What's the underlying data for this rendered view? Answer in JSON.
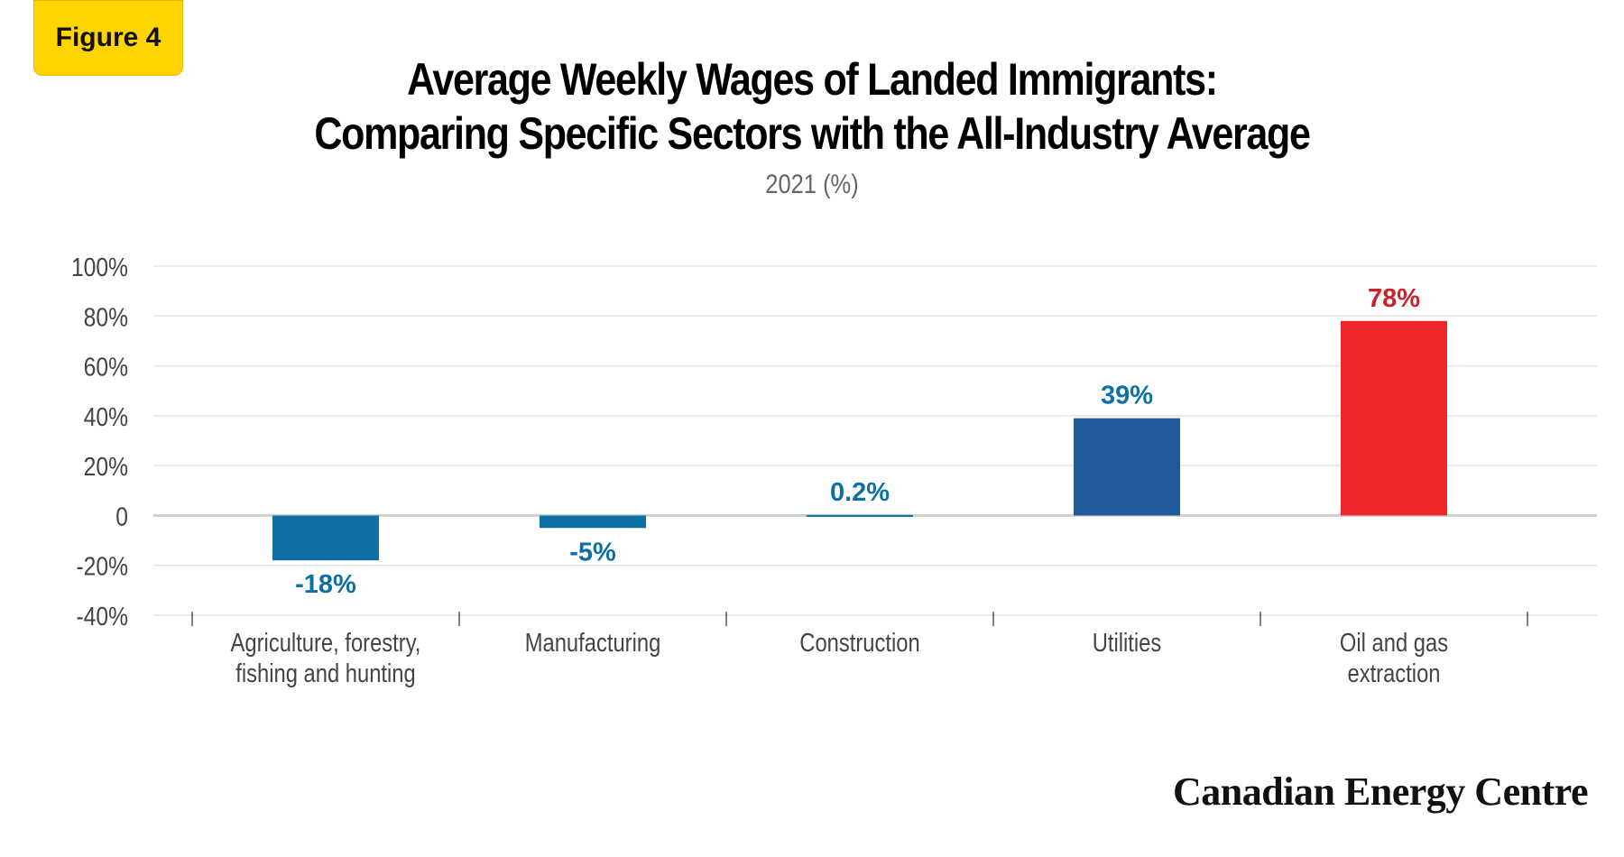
{
  "figure_label": "Figure 4",
  "title_line1": "Average Weekly Wages of Landed Immigrants:",
  "title_line2": "Comparing Specific Sectors with the All-Industry Average",
  "subtitle": "2021 (%)",
  "brand": "Canadian Energy Centre",
  "colors": {
    "teal_blue": "#0d6fa3",
    "dark_blue": "#1f5b9b",
    "red": "#ee2629",
    "label_blue": "#0d6fa3",
    "label_red": "#c8232a",
    "grid": "#e3e3e3",
    "axis_text": "#444444"
  },
  "chart_data": {
    "type": "bar",
    "title": "Average Weekly Wages of Landed Immigrants: Comparing Specific Sectors with the All-Industry Average",
    "subtitle": "2021 (%)",
    "categories": [
      [
        "Agriculture, forestry,",
        "fishing and hunting"
      ],
      [
        "Manufacturing"
      ],
      [
        "Construction"
      ],
      [
        "Utilities"
      ],
      [
        "Oil and gas",
        "extraction"
      ]
    ],
    "values": [
      -18,
      -5,
      0.2,
      39,
      78
    ],
    "data_labels": [
      "-18%",
      "-5%",
      "0.2%",
      "39%",
      "78%"
    ],
    "bar_colors": [
      "#0d6fa3",
      "#0d6fa3",
      "#0d6fa3",
      "#1f5b9b",
      "#ee2629"
    ],
    "label_colors": [
      "#0d6fa3",
      "#0d6fa3",
      "#0d6fa3",
      "#0d6fa3",
      "#c8232a"
    ],
    "yticks": [
      100,
      80,
      60,
      40,
      20,
      0,
      -20,
      -40
    ],
    "ytick_labels": [
      "100%",
      "80%",
      "60%",
      "40%",
      "20%",
      "0",
      "-20%",
      "-40%"
    ],
    "ylim": [
      -40,
      100
    ],
    "grid": true
  }
}
